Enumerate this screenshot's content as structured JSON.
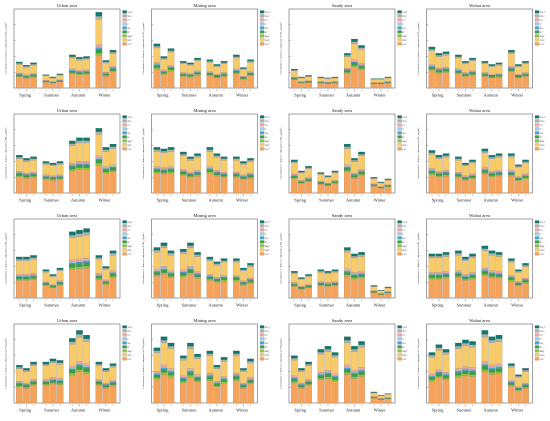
{
  "figure": {
    "row_ylabels": [
      "Concentration of chemical components in PM₂.₅ (μg/m³)",
      "Concentration of chemical components in PM₁₀ (μg/m³)",
      "Concentration of chemical components in PM₁₀ (μg/m³)",
      "Concentration of chemical components in TSP (μg/m³)"
    ],
    "legend": [
      "SO₄²⁻",
      "NO₃⁻",
      "Cl⁻",
      "F⁻",
      "Na⁺",
      "K⁺",
      "Mg²⁺",
      "NH₄⁺",
      "Ca²⁺"
    ],
    "colors": [
      "#0e7a6b",
      "#b0b0b0",
      "#f4a6a0",
      "#9ad0ec",
      "#4aa3d6",
      "#3a9e48",
      "#8cc63f",
      "#f7ca6a",
      "#f5a25a"
    ],
    "column_titles": [
      "Urban area",
      "Mining area",
      "Sandy area",
      "Wuhai area"
    ],
    "season_labels": [
      "Spring",
      "Summer",
      "Autumn",
      "Winter"
    ],
    "point_labels": [
      "A",
      "B",
      "C"
    ]
  },
  "chart_data": [
    {
      "type": "bar",
      "title": "Urban area",
      "ylabel": "Concentration of chemical components in PM₂.₅ (μg/m³)",
      "stacked": true,
      "ylim": [
        0,
        100
      ],
      "categories": [
        "Spring A",
        "Spring B",
        "Spring C",
        "Summer A",
        "Summer B",
        "Summer C",
        "Autumn A",
        "Autumn B",
        "Autumn C",
        "Winter A",
        "Winter B",
        "Winter C"
      ],
      "totals": [
        33,
        29,
        32,
        17,
        14,
        18,
        42,
        39,
        40,
        96,
        35,
        48
      ]
    },
    {
      "type": "bar",
      "title": "Mining area",
      "ylabel": "Concentration of chemical components in PM₂.₅ (μg/m³)",
      "stacked": true,
      "ylim": [
        0,
        100
      ],
      "categories": [
        "Spring A",
        "Spring B",
        "Spring C",
        "Summer A",
        "Summer B",
        "Summer C",
        "Autumn A",
        "Autumn B",
        "Autumn C",
        "Winter A",
        "Winter B",
        "Winter C"
      ],
      "totals": [
        56,
        40,
        50,
        34,
        32,
        38,
        36,
        30,
        34,
        42,
        26,
        36
      ]
    },
    {
      "type": "bar",
      "title": "Sandy area",
      "ylabel": "Concentration of chemical components in PM₂.₅ (μg/m³)",
      "stacked": true,
      "ylim": [
        0,
        100
      ],
      "categories": [
        "Spring A",
        "Spring B",
        "Spring C",
        "Summer A",
        "Summer B",
        "Summer C",
        "Autumn A",
        "Autumn B",
        "Autumn C",
        "Winter A",
        "Winter B",
        "Winter C"
      ],
      "totals": [
        24,
        14,
        16,
        14,
        13,
        14,
        44,
        62,
        54,
        12,
        12,
        14
      ]
    },
    {
      "type": "bar",
      "title": "Wuhai area",
      "ylabel": "Concentration of chemical components in PM₂.₅ (μg/m³)",
      "stacked": true,
      "ylim": [
        0,
        100
      ],
      "categories": [
        "Spring A",
        "Spring B",
        "Spring C",
        "Summer A",
        "Summer B",
        "Summer C",
        "Autumn A",
        "Autumn B",
        "Autumn C",
        "Winter A",
        "Winter B",
        "Winter C"
      ],
      "totals": [
        52,
        44,
        46,
        42,
        34,
        38,
        34,
        30,
        32,
        48,
        30,
        34
      ]
    },
    {
      "type": "bar",
      "title": "Urban area",
      "ylabel": "Concentration of chemical components in PM₁₀ (μg/m³)",
      "stacked": true,
      "ylim": [
        0,
        100
      ],
      "categories": [
        "Spring A",
        "Spring B",
        "Spring C",
        "Summer A",
        "Summer B",
        "Summer C",
        "Autumn A",
        "Autumn B",
        "Autumn C",
        "Winter A",
        "Winter B",
        "Winter C"
      ],
      "totals": [
        48,
        44,
        46,
        40,
        38,
        40,
        66,
        70,
        70,
        82,
        58,
        62
      ]
    },
    {
      "type": "bar",
      "title": "Mining area",
      "ylabel": "Concentration of chemical components in PM₁₀ (μg/m³)",
      "stacked": true,
      "ylim": [
        0,
        100
      ],
      "categories": [
        "Spring A",
        "Spring B",
        "Spring C",
        "Summer A",
        "Summer B",
        "Summer C",
        "Autumn A",
        "Autumn B",
        "Autumn C",
        "Winter A",
        "Winter B",
        "Winter C"
      ],
      "totals": [
        58,
        56,
        58,
        52,
        46,
        50,
        58,
        50,
        46,
        46,
        40,
        44
      ]
    },
    {
      "type": "bar",
      "title": "Sandy area",
      "ylabel": "Concentration of chemical components in PM₁₀ (μg/m³)",
      "stacked": true,
      "ylim": [
        0,
        100
      ],
      "categories": [
        "Spring A",
        "Spring B",
        "Spring C",
        "Summer A",
        "Summer B",
        "Summer C",
        "Autumn A",
        "Autumn B",
        "Autumn C",
        "Winter A",
        "Winter B",
        "Winter C"
      ],
      "totals": [
        42,
        28,
        34,
        26,
        22,
        28,
        62,
        44,
        52,
        20,
        14,
        18
      ]
    },
    {
      "type": "bar",
      "title": "Wuhai area",
      "ylabel": "Concentration of chemical components in PM₁₀ (μg/m³)",
      "stacked": true,
      "ylim": [
        0,
        100
      ],
      "categories": [
        "Spring A",
        "Spring B",
        "Spring C",
        "Summer A",
        "Summer B",
        "Summer C",
        "Autumn A",
        "Autumn B",
        "Autumn C",
        "Winter A",
        "Winter B",
        "Winter C"
      ],
      "totals": [
        54,
        48,
        50,
        46,
        38,
        42,
        56,
        48,
        50,
        50,
        36,
        42
      ]
    },
    {
      "type": "bar",
      "title": "Urban area",
      "ylabel": "Concentration of chemical components in PM₁₀ (μg/m³)",
      "stacked": true,
      "ylim": [
        0,
        100
      ],
      "categories": [
        "Spring A",
        "Spring B",
        "Spring C",
        "Summer A",
        "Summer B",
        "Summer C",
        "Autumn A",
        "Autumn B",
        "Autumn C",
        "Winter A",
        "Winter B",
        "Winter C"
      ],
      "totals": [
        52,
        52,
        54,
        36,
        30,
        38,
        84,
        86,
        88,
        54,
        40,
        60
      ]
    },
    {
      "type": "bar",
      "title": "Mining area",
      "ylabel": "Concentration of chemical components in PM₁₀ (μg/m³)",
      "stacked": true,
      "ylim": [
        0,
        100
      ],
      "categories": [
        "Spring A",
        "Spring B",
        "Spring C",
        "Summer A",
        "Summer B",
        "Summer C",
        "Autumn A",
        "Autumn B",
        "Autumn C",
        "Winter A",
        "Winter B",
        "Winter C"
      ],
      "totals": [
        64,
        70,
        60,
        62,
        70,
        58,
        52,
        46,
        50,
        50,
        38,
        44
      ]
    },
    {
      "type": "bar",
      "title": "Sandy area",
      "ylabel": "Concentration of chemical components in PM₁₀ (μg/m³)",
      "stacked": true,
      "ylim": [
        0,
        100
      ],
      "categories": [
        "Spring A",
        "Spring B",
        "Spring C",
        "Summer A",
        "Summer B",
        "Summer C",
        "Autumn A",
        "Autumn B",
        "Autumn C",
        "Winter A",
        "Winter B",
        "Winter C"
      ],
      "totals": [
        34,
        26,
        30,
        36,
        34,
        36,
        64,
        56,
        58,
        16,
        10,
        14
      ]
    },
    {
      "type": "bar",
      "title": "Wuhai area",
      "ylabel": "Concentration of chemical components in PM₁₀ (μg/m³)",
      "stacked": true,
      "ylim": [
        0,
        100
      ],
      "categories": [
        "Spring A",
        "Spring B",
        "Spring C",
        "Summer A",
        "Summer B",
        "Summer C",
        "Autumn A",
        "Autumn B",
        "Autumn C",
        "Winter A",
        "Winter B",
        "Winter C"
      ],
      "totals": [
        56,
        56,
        58,
        60,
        52,
        56,
        66,
        60,
        58,
        50,
        36,
        44
      ]
    },
    {
      "type": "bar",
      "title": "Urban area",
      "ylabel": "Concentration of chemical components in TSP (μg/m³)",
      "stacked": true,
      "ylim": [
        0,
        100
      ],
      "categories": [
        "Spring A",
        "Spring B",
        "Spring C",
        "Summer A",
        "Summer B",
        "Summer C",
        "Autumn A",
        "Autumn B",
        "Autumn C",
        "Winter A",
        "Winter B",
        "Winter C"
      ],
      "totals": [
        48,
        44,
        52,
        52,
        56,
        54,
        82,
        92,
        86,
        52,
        44,
        50
      ]
    },
    {
      "type": "bar",
      "title": "Mining area",
      "ylabel": "Concentration of chemical components in TSP (μg/m³)",
      "stacked": true,
      "ylim": [
        0,
        100
      ],
      "categories": [
        "Spring A",
        "Spring B",
        "Spring C",
        "Summer A",
        "Summer B",
        "Summer C",
        "Autumn A",
        "Autumn B",
        "Autumn C",
        "Winter A",
        "Winter B",
        "Winter C"
      ],
      "totals": [
        70,
        84,
        76,
        60,
        76,
        62,
        66,
        48,
        58,
        66,
        44,
        56
      ]
    },
    {
      "type": "bar",
      "title": "Sandy area",
      "ylabel": "Concentration of chemical components in TSP (μg/m³)",
      "stacked": true,
      "ylim": [
        0,
        100
      ],
      "categories": [
        "Spring A",
        "Spring B",
        "Spring C",
        "Summer A",
        "Summer B",
        "Summer C",
        "Autumn A",
        "Autumn B",
        "Autumn C",
        "Winter A",
        "Winter B",
        "Winter C"
      ],
      "totals": [
        60,
        44,
        52,
        68,
        72,
        64,
        84,
        72,
        78,
        14,
        10,
        12
      ]
    },
    {
      "type": "bar",
      "title": "Wuhai area",
      "ylabel": "Concentration of chemical components in TSP (μg/m³)",
      "stacked": true,
      "ylim": [
        0,
        100
      ],
      "categories": [
        "Spring A",
        "Spring B",
        "Spring C",
        "Summer A",
        "Summer B",
        "Summer C",
        "Autumn A",
        "Autumn B",
        "Autumn C",
        "Winter A",
        "Winter B",
        "Winter C"
      ],
      "totals": [
        64,
        74,
        68,
        76,
        80,
        78,
        92,
        84,
        86,
        50,
        36,
        44
      ]
    }
  ]
}
